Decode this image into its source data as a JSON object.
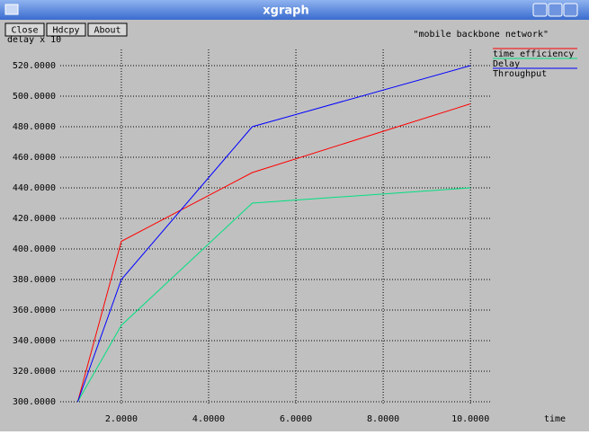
{
  "window": {
    "title": "xgraph",
    "buttons": [
      "Close",
      "Hdcpy",
      "About"
    ]
  },
  "chart_data": {
    "type": "line",
    "title": "\"mobile backbone network\"",
    "y_label": "delay x 10",
    "x_label": "time",
    "x": [
      1,
      2,
      5,
      10
    ],
    "series": [
      {
        "name": "time efficiency",
        "color": "#ff0000",
        "values": [
          300,
          405,
          450,
          495
        ]
      },
      {
        "name": "Delay",
        "color": "#00e080",
        "values": [
          300,
          350,
          430,
          440
        ]
      },
      {
        "name": "Throughput",
        "color": "#0000ff",
        "values": [
          300,
          380,
          480,
          520
        ]
      }
    ],
    "xlim": [
      0.6,
      10.45
    ],
    "ylim": [
      300,
      520
    ],
    "xticks": [
      {
        "value": 2,
        "label": "2.0000"
      },
      {
        "value": 4,
        "label": "4.0000"
      },
      {
        "value": 6,
        "label": "6.0000"
      },
      {
        "value": 8,
        "label": "8.0000"
      },
      {
        "value": 10,
        "label": "10.0000"
      }
    ],
    "yticks": [
      {
        "value": 300,
        "label": "300.0000"
      },
      {
        "value": 320,
        "label": "320.0000"
      },
      {
        "value": 340,
        "label": "340.0000"
      },
      {
        "value": 360,
        "label": "360.0000"
      },
      {
        "value": 380,
        "label": "380.0000"
      },
      {
        "value": 400,
        "label": "400.0000"
      },
      {
        "value": 420,
        "label": "420.0000"
      },
      {
        "value": 440,
        "label": "440.0000"
      },
      {
        "value": 460,
        "label": "460.0000"
      },
      {
        "value": 480,
        "label": "480.0000"
      },
      {
        "value": 500,
        "label": "500.0000"
      },
      {
        "value": 520,
        "label": "520.0000"
      }
    ],
    "grid": true,
    "legend": "right"
  }
}
